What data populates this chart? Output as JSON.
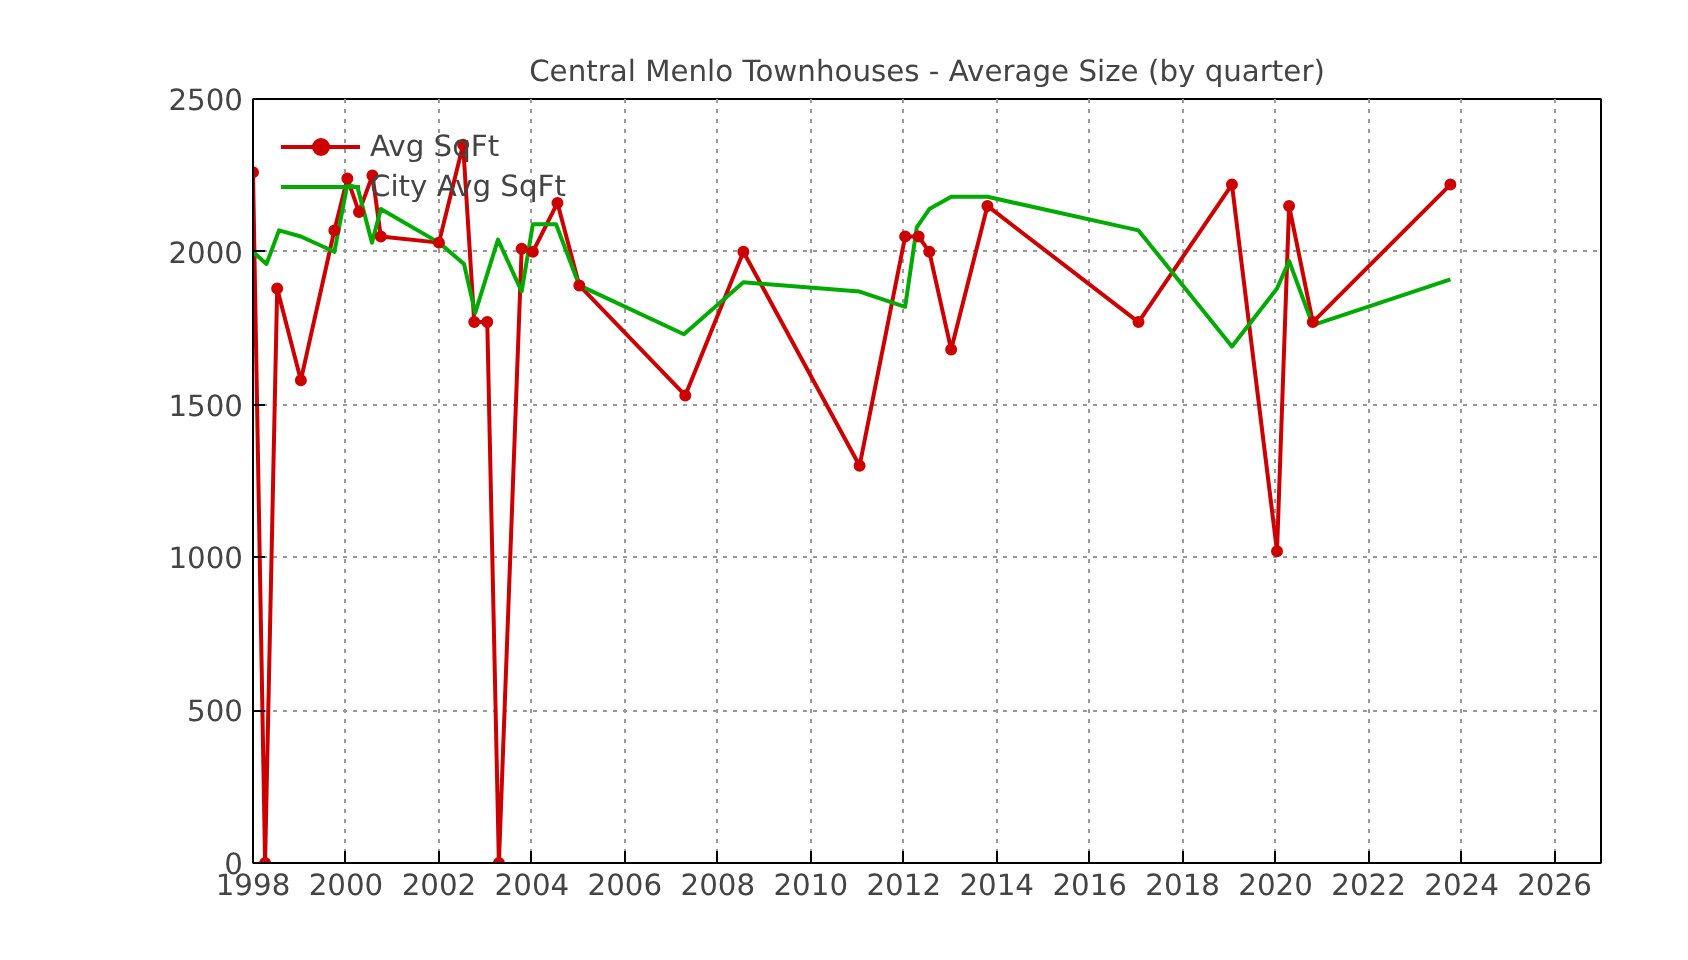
{
  "chart_data": {
    "type": "line",
    "title": "Central Menlo Townhouses - Average Size (by quarter)",
    "xlim": [
      1998,
      2027
    ],
    "xticks": [
      1998,
      2000,
      2002,
      2004,
      2006,
      2008,
      2010,
      2012,
      2014,
      2016,
      2018,
      2020,
      2022,
      2024,
      2026
    ],
    "ylim": [
      0,
      2500
    ],
    "yticks": [
      0,
      500,
      1000,
      1500,
      2000,
      2500
    ],
    "grid": true,
    "legend": "top left",
    "series": [
      {
        "name": "Avg SqFt",
        "color": "#cc0000",
        "marker": "circle",
        "x": [
          1998.0,
          1998.26,
          1998.52,
          1999.03,
          1999.75,
          2000.03,
          2000.28,
          2000.57,
          2000.75,
          2002.0,
          2002.52,
          2002.76,
          2003.04,
          2003.29,
          2003.78,
          2004.02,
          2004.55,
          2005.02,
          2007.3,
          2008.55,
          2011.05,
          2012.03,
          2012.32,
          2012.55,
          2013.02,
          2013.8,
          2017.05,
          2019.06,
          2020.03,
          2020.29,
          2020.8,
          2023.76
        ],
        "values": [
          2260,
          0,
          1880,
          1580,
          2070,
          2240,
          2130,
          2250,
          2050,
          2030,
          2350,
          1770,
          1770,
          0,
          2010,
          2000,
          2160,
          1890,
          1530,
          2000,
          1300,
          2050,
          2050,
          2000,
          1680,
          2150,
          1770,
          2220,
          1020,
          2150,
          1770,
          2220
        ]
      },
      {
        "name": "City Avg SqFt",
        "color": "#00aa00",
        "marker": "none",
        "x": [
          1998.0,
          1998.29,
          1998.56,
          1999.03,
          1999.75,
          2000.03,
          2000.25,
          2000.56,
          2000.75,
          2002.0,
          2002.54,
          2002.78,
          2003.27,
          2003.78,
          2004.02,
          2004.52,
          2005.02,
          2007.27,
          2008.55,
          2011.05,
          2012.03,
          2012.28,
          2012.55,
          2013.02,
          2013.8,
          2017.05,
          2019.06,
          2020.03,
          2020.29,
          2020.8,
          2023.76
        ],
        "values": [
          2000,
          1960,
          2070,
          2050,
          2000,
          2220,
          2210,
          2030,
          2140,
          2030,
          1960,
          1800,
          2040,
          1870,
          2090,
          2090,
          1890,
          1730,
          1900,
          1870,
          1820,
          2080,
          2140,
          2180,
          2180,
          2070,
          1690,
          1880,
          1970,
          1760,
          1910
        ]
      }
    ]
  }
}
